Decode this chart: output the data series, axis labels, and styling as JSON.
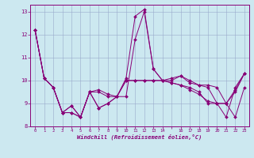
{
  "xlabel": "Windchill (Refroidissement éolien,°C)",
  "background_color": "#cce8f0",
  "line_color": "#880077",
  "grid_color": "#99aacc",
  "x_hours": [
    0,
    1,
    2,
    3,
    4,
    5,
    6,
    7,
    8,
    9,
    10,
    11,
    12,
    13,
    14,
    15,
    16,
    17,
    18,
    19,
    20,
    21,
    22,
    23
  ],
  "line1": [
    12.2,
    10.1,
    9.7,
    8.6,
    8.6,
    8.4,
    9.5,
    9.6,
    9.4,
    9.3,
    9.3,
    11.8,
    13.0,
    10.5,
    10.0,
    10.1,
    10.2,
    10.0,
    9.8,
    9.8,
    9.7,
    9.0,
    8.4,
    9.7
  ],
  "line2": [
    12.2,
    10.1,
    9.7,
    8.6,
    8.6,
    8.4,
    9.5,
    9.5,
    9.3,
    9.3,
    10.1,
    12.8,
    13.1,
    10.5,
    10.0,
    10.0,
    10.2,
    9.9,
    9.8,
    9.7,
    9.0,
    8.4,
    9.7,
    10.3
  ],
  "line3": [
    12.2,
    10.1,
    9.7,
    8.6,
    8.9,
    8.4,
    9.5,
    8.8,
    9.0,
    9.3,
    10.0,
    10.0,
    10.0,
    10.0,
    10.0,
    9.9,
    9.8,
    9.6,
    9.4,
    9.1,
    9.0,
    9.0,
    9.6,
    10.3
  ],
  "line4": [
    12.2,
    10.1,
    9.7,
    8.6,
    8.9,
    8.4,
    9.5,
    8.8,
    9.0,
    9.3,
    10.0,
    10.0,
    10.0,
    10.0,
    10.0,
    9.9,
    9.8,
    9.7,
    9.5,
    9.0,
    9.0,
    9.0,
    9.5,
    10.3
  ],
  "ylim": [
    8.0,
    13.3
  ],
  "yticks": [
    8,
    9,
    10,
    11,
    12,
    13
  ],
  "xtick_labels": [
    "0",
    "1",
    "2",
    "3",
    "4",
    "5",
    "6",
    "7",
    "8",
    "9",
    "10",
    "11",
    "12",
    "13",
    "14",
    "",
    "16",
    "17",
    "18",
    "19",
    "20",
    "21",
    "22",
    "23"
  ]
}
